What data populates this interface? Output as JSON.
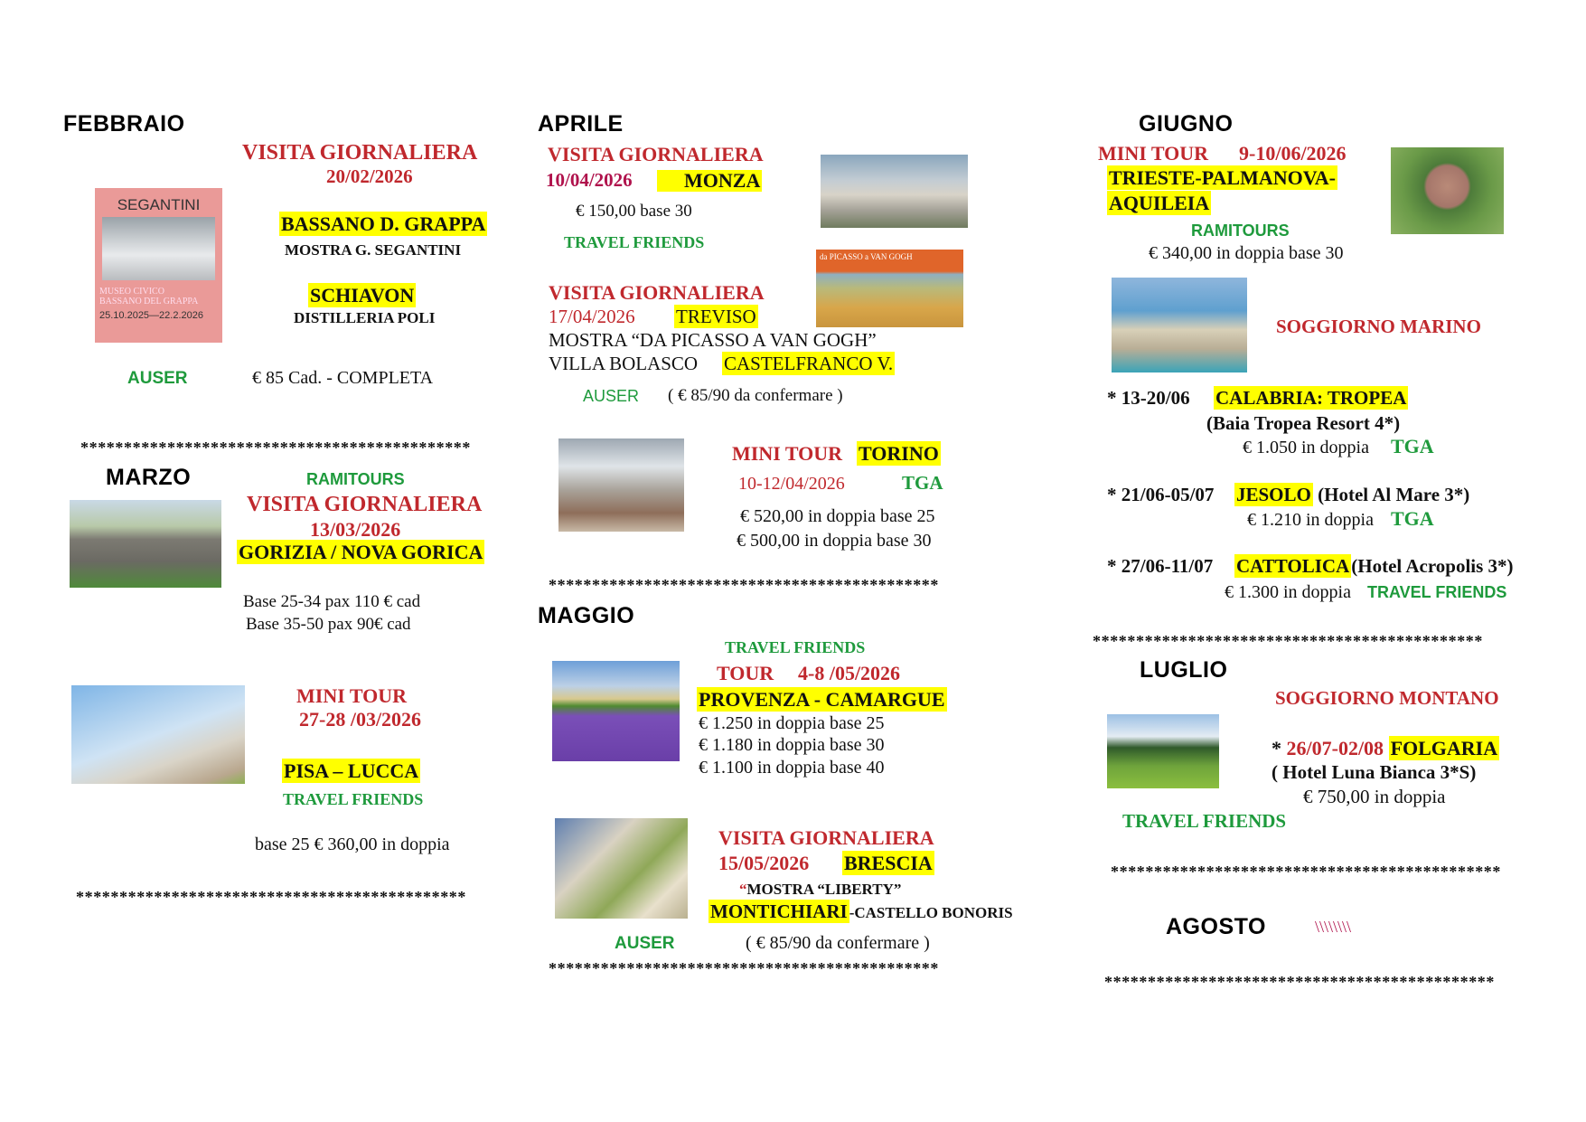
{
  "colors": {
    "title_red": "#c0282d",
    "agency_green": "#1e9a3c",
    "date_magenta": "#b0124c",
    "highlight": "#ffff00"
  },
  "separator": "*********************************************",
  "febbraio": {
    "month": "FEBBRAIO",
    "type": "VISITA  GIORNALIERA",
    "date": "20/02/2026",
    "place1": "BASSANO D. GRAPPA",
    "place1_sub": "MOSTRA G. SEGANTINI",
    "place2": "SCHIAVON",
    "place2_sub": "DISTILLERIA POLI",
    "agency": "AUSER",
    "price": "€ 85 Cad. - COMPLETA",
    "poster": {
      "title": "SEGANTINI",
      "venue1": "MUSEO CIVICO",
      "venue2": "BASSANO DEL GRAPPA",
      "dates": "25.10.2025—22.2.2026"
    }
  },
  "marzo": {
    "month": "MARZO",
    "trip1": {
      "agency": "RAMITOURS",
      "type": "VISITA GIORNALIERA",
      "date": "13/03/2026",
      "place": "GORIZIA  / NOVA GORICA",
      "price1": "Base 25-34 pax  110 € cad",
      "price2": "Base 35-50 pax 90€ cad"
    },
    "trip2": {
      "type": "MINI TOUR",
      "date": "27-28 /03/2026",
      "place": "PISA – LUCCA",
      "agency": "TRAVEL FRIENDS",
      "price": "base 25 € 360,00 in doppia"
    }
  },
  "aprile": {
    "month": "APRILE",
    "trip1": {
      "type": "VISITA  GIORNALIERA",
      "date": "10/04/2026",
      "place": "MONZA",
      "price": "€ 150,00 base 30",
      "agency": "TRAVEL FRIENDS"
    },
    "trip2": {
      "type": "VISITA GIORNALIERA",
      "date": "17/04/2026",
      "place": "TREVISO",
      "exhibit": "MOSTRA “DA PICASSO A VAN GOGH”",
      "villa": "VILLA BOLASCO",
      "place2": "CASTELFRANCO V.",
      "agency": "AUSER",
      "price": "( € 85/90 da confermare )",
      "banner": "da PICASSO a VAN GOGH"
    },
    "trip3": {
      "type": "MINI TOUR",
      "place": "TORINO",
      "date": "10-12/04/2026",
      "agency": "TGA",
      "price1": "€ 520,00 in doppia base 25",
      "price2": "€ 500,00 in doppia base 30"
    }
  },
  "maggio": {
    "month": "MAGGIO",
    "trip1": {
      "agency": "TRAVEL FRIENDS",
      "type": "TOUR",
      "date": "4-8 /05/2026",
      "place": "PROVENZA - CAMARGUE",
      "price1": "€ 1.250 in doppia base 25",
      "price2": "€ 1.180 in doppia base 30",
      "price3": "€ 1.100 in doppia base 40"
    },
    "trip2": {
      "type": "VISITA  GIORNALIERA",
      "date": "15/05/2026",
      "place": "BRESCIA",
      "quote": "“",
      "exhibit": "MOSTRA “LIBERTY”",
      "place2": "MONTICHIARI",
      "place2_sub": "-CASTELLO BONORIS",
      "agency": "AUSER",
      "price": "( € 85/90 da confermare )"
    }
  },
  "giugno": {
    "month": "GIUGNO",
    "trip1": {
      "type": "MINI TOUR",
      "date": "9-10/06/2026",
      "place_line1": "TRIESTE-PALMANOVA-",
      "place_line2": "AQUILEIA",
      "agency": "RAMITOURS",
      "price": "€ 340,00 in doppia base 30"
    },
    "seaside": {
      "title": "SOGGIORNO MARINO",
      "stays": [
        {
          "dates": "* 13-20/06",
          "place": "CALABRIA: TROPEA",
          "hotel": "(Baia Tropea Resort 4*)",
          "price": "€ 1.050 in doppia",
          "agency": "TGA"
        },
        {
          "dates": "* 21/06-05/07",
          "place": "JESOLO",
          "hotel": "(Hotel Al Mare 3*)",
          "price": "€ 1.210 in doppia",
          "agency": "TGA"
        },
        {
          "dates": "* 27/06-11/07",
          "place": "CATTOLICA",
          "hotel": "(Hotel Acropolis 3*)",
          "price": "€ 1.300 in doppia",
          "agency": "TRAVEL FRIENDS"
        }
      ]
    }
  },
  "luglio": {
    "month": "LUGLIO",
    "title": "SOGGIORNO MONTANO",
    "star": "*",
    "dates": "26/07-02/08",
    "place": "FOLGARIA",
    "hotel": "( Hotel Luna Bianca 3*S)",
    "price": "€ 750,00 in doppia",
    "agency": "TRAVEL FRIENDS"
  },
  "agosto": {
    "month": "AGOSTO",
    "mark": "\\\\\\\\\\\\\\\\"
  }
}
